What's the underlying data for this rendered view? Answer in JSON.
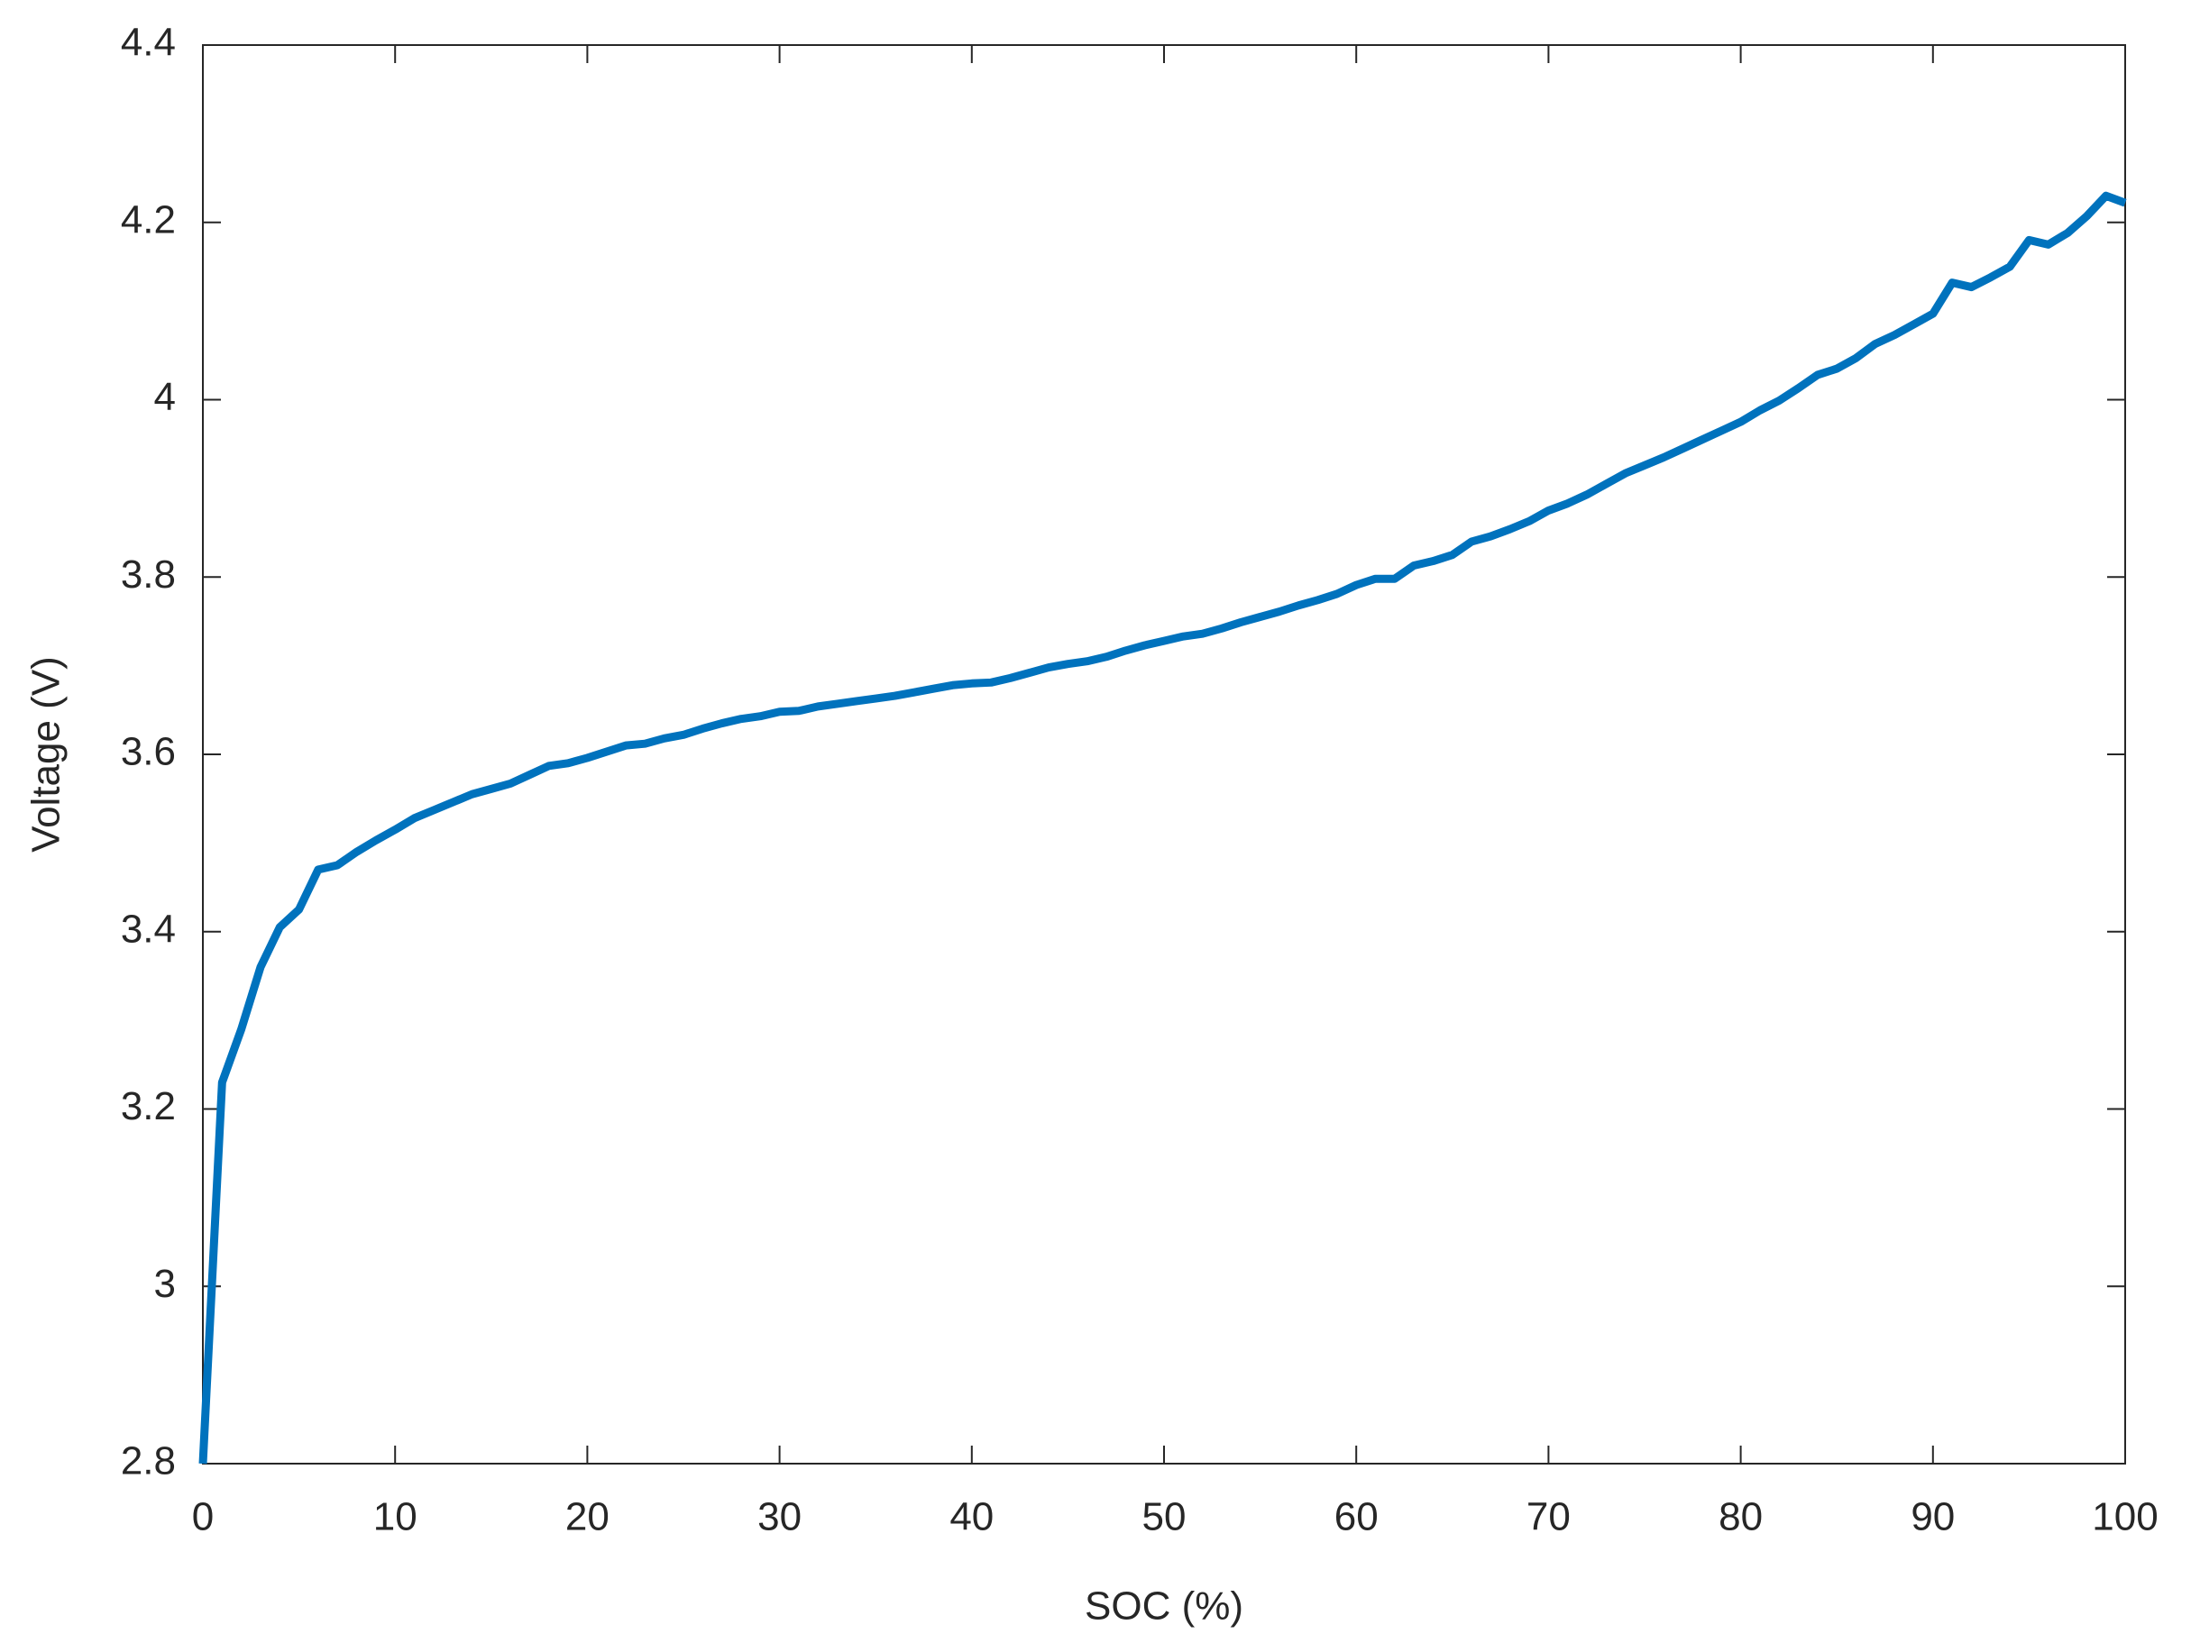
{
  "chart_data": {
    "type": "line",
    "x_label": "SOC (%)",
    "y_label": "Voltage (V)",
    "x": [
      0,
      1,
      2,
      3,
      4,
      5,
      6,
      7,
      8,
      9,
      10,
      11,
      12,
      13,
      14,
      15,
      16,
      17,
      18,
      19,
      20,
      21,
      22,
      23,
      24,
      25,
      26,
      27,
      28,
      29,
      30,
      31,
      32,
      33,
      34,
      35,
      36,
      37,
      38,
      39,
      40,
      41,
      42,
      43,
      44,
      45,
      46,
      47,
      48,
      49,
      50,
      51,
      52,
      53,
      54,
      55,
      56,
      57,
      58,
      59,
      60,
      61,
      62,
      63,
      64,
      65,
      66,
      67,
      68,
      69,
      70,
      71,
      72,
      73,
      74,
      75,
      76,
      77,
      78,
      79,
      80,
      81,
      82,
      83,
      84,
      85,
      86,
      87,
      88,
      89,
      90,
      91,
      92,
      93,
      94,
      95,
      96,
      97,
      98,
      99,
      100
    ],
    "series": [
      {
        "color": "#0072bd",
        "values": [
          2.8,
          3.23,
          3.29,
          3.36,
          3.405,
          3.425,
          3.47,
          3.475,
          3.49,
          3.503,
          3.515,
          3.528,
          3.537,
          3.546,
          3.555,
          3.561,
          3.567,
          3.577,
          3.587,
          3.59,
          3.596,
          3.603,
          3.61,
          3.612,
          3.618,
          3.622,
          3.629,
          3.635,
          3.64,
          3.643,
          3.648,
          3.649,
          3.654,
          3.657,
          3.66,
          3.663,
          3.666,
          3.67,
          3.674,
          3.678,
          3.68,
          3.681,
          3.686,
          3.692,
          3.698,
          3.702,
          3.705,
          3.71,
          3.717,
          3.723,
          3.728,
          3.733,
          3.736,
          3.742,
          3.749,
          3.755,
          3.761,
          3.768,
          3.774,
          3.781,
          3.791,
          3.798,
          3.798,
          3.813,
          3.818,
          3.825,
          3.84,
          3.846,
          3.854,
          3.863,
          3.875,
          3.883,
          3.893,
          3.905,
          3.917,
          3.926,
          3.935,
          3.945,
          3.955,
          3.965,
          3.975,
          3.988,
          3.999,
          4.013,
          4.028,
          4.035,
          4.047,
          4.063,
          4.073,
          4.085,
          4.097,
          4.132,
          4.127,
          4.138,
          4.15,
          4.18,
          4.175,
          4.188,
          4.207,
          4.23,
          4.222
        ]
      }
    ],
    "xlim": [
      0,
      100
    ],
    "xticks": [
      0,
      10,
      20,
      30,
      40,
      50,
      60,
      70,
      80,
      90,
      100
    ],
    "ylim": [
      2.8,
      4.4
    ],
    "yticks": [
      2.8,
      3,
      3.2,
      3.4,
      3.6,
      3.8,
      4,
      4.2,
      4.4
    ],
    "grid": false
  }
}
